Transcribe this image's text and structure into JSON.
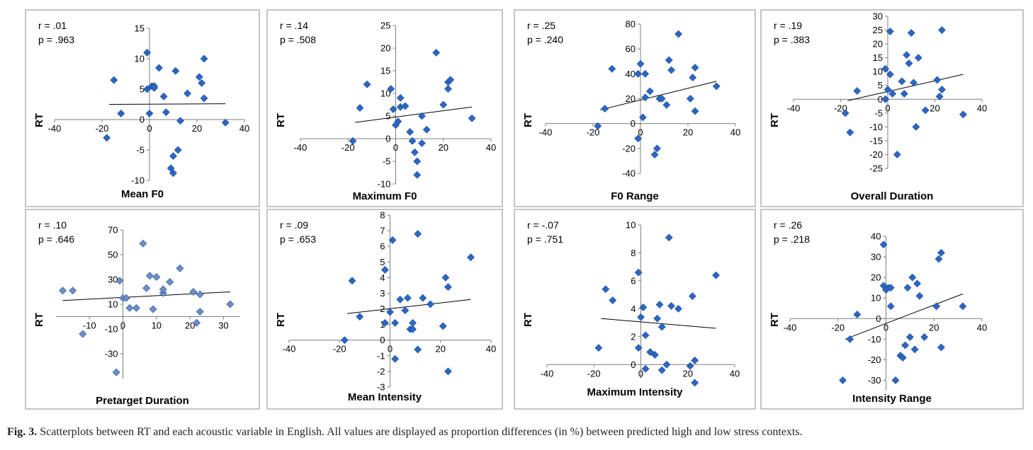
{
  "caption": {
    "label": "Fig. 3.",
    "text": "Scatterplots between RT and each acoustic variable in English. All values are displayed as proportion differences (in %) between predicted high and low stress contexts."
  },
  "chart_data": [
    {
      "type": "scatter",
      "title": "",
      "xlabel": "Mean F0",
      "ylabel": "RT",
      "r": "r = .01",
      "p": "p = .963",
      "xlim": [
        -40,
        40
      ],
      "ylim": [
        -10,
        15
      ],
      "xticks": [
        -40,
        -20,
        0,
        20,
        40
      ],
      "yticks": [
        -10,
        -5,
        0,
        5,
        10,
        15
      ],
      "marker_color": "#2b67c2",
      "points": [
        [
          -15,
          6.5
        ],
        [
          -12,
          1
        ],
        [
          -18,
          -3
        ],
        [
          -1,
          5
        ],
        [
          -1,
          11
        ],
        [
          0,
          1
        ],
        [
          1,
          5.5
        ],
        [
          2,
          5.5
        ],
        [
          2,
          5.2
        ],
        [
          4,
          8.5
        ],
        [
          6,
          3.8
        ],
        [
          7,
          1.2
        ],
        [
          9,
          -8
        ],
        [
          10,
          -8.8
        ],
        [
          10,
          -6
        ],
        [
          11,
          8
        ],
        [
          12,
          -5
        ],
        [
          13,
          -0.2
        ],
        [
          16,
          4.3
        ],
        [
          21,
          7
        ],
        [
          22,
          6
        ],
        [
          23,
          10
        ],
        [
          23,
          3.5
        ],
        [
          32,
          -0.5
        ]
      ],
      "trend": [
        [
          -17,
          2.5
        ],
        [
          32,
          2.6
        ]
      ]
    },
    {
      "type": "scatter",
      "title": "",
      "xlabel": "Maximum F0",
      "ylabel": "RT",
      "r": "r = .14",
      "p": "p = .508",
      "xlim": [
        -40,
        40
      ],
      "ylim": [
        -10,
        25
      ],
      "xticks": [
        -40,
        -20,
        0,
        20,
        40
      ],
      "yticks": [
        -10,
        -5,
        0,
        5,
        10,
        15,
        20,
        25
      ],
      "marker_color": "#2b67c2",
      "points": [
        [
          -18,
          -0.5
        ],
        [
          -15,
          6.8
        ],
        [
          -12,
          12
        ],
        [
          -2,
          11
        ],
        [
          -1,
          6.5
        ],
        [
          0,
          3
        ],
        [
          1,
          3.8
        ],
        [
          2,
          9
        ],
        [
          2,
          7
        ],
        [
          4,
          7.2
        ],
        [
          6,
          1.5
        ],
        [
          7,
          -0.5
        ],
        [
          8,
          -3
        ],
        [
          9,
          -8
        ],
        [
          9,
          -5
        ],
        [
          11,
          -1
        ],
        [
          11,
          5
        ],
        [
          13,
          2
        ],
        [
          17,
          19
        ],
        [
          20,
          7.5
        ],
        [
          22,
          12.5
        ],
        [
          22,
          11
        ],
        [
          23,
          13
        ],
        [
          32,
          4.5
        ]
      ],
      "trend": [
        [
          -17,
          3.6
        ],
        [
          32,
          7
        ]
      ]
    },
    {
      "type": "scatter",
      "title": "",
      "xlabel": "F0 Range",
      "ylabel": "RT",
      "r": "r = .25",
      "p": "p = .240",
      "xlim": [
        -40,
        40
      ],
      "ylim": [
        -40,
        80
      ],
      "xticks": [
        -40,
        -20,
        0,
        20,
        40
      ],
      "yticks": [
        -40,
        -20,
        0,
        20,
        40,
        60,
        80
      ],
      "marker_color": "#2b67c2",
      "points": [
        [
          -18,
          -2
        ],
        [
          -15,
          12
        ],
        [
          -12,
          44
        ],
        [
          -1,
          40
        ],
        [
          -1,
          -12
        ],
        [
          0,
          48
        ],
        [
          1,
          5
        ],
        [
          2,
          40
        ],
        [
          2,
          21
        ],
        [
          4,
          26
        ],
        [
          6,
          -25
        ],
        [
          7,
          -20
        ],
        [
          8,
          20
        ],
        [
          9,
          20
        ],
        [
          11,
          15
        ],
        [
          12,
          51
        ],
        [
          13,
          43
        ],
        [
          16,
          72
        ],
        [
          21,
          20
        ],
        [
          22,
          37
        ],
        [
          23,
          45
        ],
        [
          23,
          10
        ],
        [
          32,
          30
        ]
      ],
      "trend": [
        [
          -17,
          11
        ],
        [
          32,
          34
        ]
      ]
    },
    {
      "type": "scatter",
      "title": "",
      "xlabel": "Overall Duration",
      "ylabel": "RT",
      "r": "r = .19",
      "p": "p = .383",
      "xlim": [
        -40,
        40
      ],
      "ylim": [
        -25,
        30
      ],
      "xticks": [
        -40,
        -20,
        0,
        20,
        40
      ],
      "yticks": [
        -25,
        -20,
        -15,
        -10,
        -5,
        0,
        5,
        10,
        15,
        20,
        25,
        30
      ],
      "marker_color": "#2b67c2",
      "points": [
        [
          -18,
          -5
        ],
        [
          -16,
          -12
        ],
        [
          -13,
          3
        ],
        [
          -1,
          11
        ],
        [
          -1,
          0
        ],
        [
          0,
          3.5
        ],
        [
          1,
          24.5
        ],
        [
          1,
          9
        ],
        [
          2,
          2
        ],
        [
          4,
          -20
        ],
        [
          6,
          6.5
        ],
        [
          7,
          2
        ],
        [
          8,
          16
        ],
        [
          9,
          13
        ],
        [
          10,
          24
        ],
        [
          11,
          6
        ],
        [
          12,
          -10
        ],
        [
          13,
          15
        ],
        [
          16,
          -4
        ],
        [
          21,
          7
        ],
        [
          22,
          1
        ],
        [
          23,
          25
        ],
        [
          23,
          3.5
        ],
        [
          32,
          -5.5
        ]
      ],
      "trend": [
        [
          -17,
          -0.5
        ],
        [
          32,
          9
        ]
      ]
    },
    {
      "type": "scatter",
      "title": "",
      "xlabel": "Pretarget Duration",
      "ylabel": "RT",
      "r": "r = .10",
      "p": "p = .646",
      "xlim": [
        -20,
        35
      ],
      "ylim": [
        -50,
        70
      ],
      "xticks": [
        -10,
        0,
        10,
        20,
        30
      ],
      "yticks": [
        -30,
        -10,
        10,
        30,
        50,
        70
      ],
      "marker_color": "#6f8fc4",
      "points": [
        [
          -18,
          21
        ],
        [
          -15,
          21
        ],
        [
          -12,
          -14
        ],
        [
          -1,
          29
        ],
        [
          -2,
          -45
        ],
        [
          0,
          15
        ],
        [
          1,
          15
        ],
        [
          2,
          7
        ],
        [
          4,
          7
        ],
        [
          6,
          59
        ],
        [
          7,
          23
        ],
        [
          8,
          33
        ],
        [
          9,
          6
        ],
        [
          10,
          32
        ],
        [
          12,
          19
        ],
        [
          12,
          22
        ],
        [
          14,
          28
        ],
        [
          17,
          39
        ],
        [
          21,
          20
        ],
        [
          22,
          -5
        ],
        [
          23,
          18
        ],
        [
          23,
          4
        ],
        [
          32,
          10
        ]
      ],
      "trend": [
        [
          -18,
          13
        ],
        [
          32,
          20
        ]
      ]
    },
    {
      "type": "scatter",
      "title": "",
      "xlabel": "Mean Intensity",
      "ylabel": "RT",
      "r": "r = .09",
      "p": "p = .653",
      "xlim": [
        -40,
        40
      ],
      "ylim": [
        -3,
        8
      ],
      "xticks": [
        -40,
        -20,
        0,
        20,
        40
      ],
      "yticks": [
        -3,
        -2,
        -1,
        0,
        1,
        2,
        3,
        4,
        5,
        6,
        7,
        8
      ],
      "marker_color": "#2b67c2",
      "points": [
        [
          -18,
          0
        ],
        [
          -15,
          3.8
        ],
        [
          -12,
          1.5
        ],
        [
          -2,
          4.5
        ],
        [
          -2,
          1.1
        ],
        [
          0,
          1.8
        ],
        [
          1,
          6.4
        ],
        [
          2,
          -1.2
        ],
        [
          2,
          1.1
        ],
        [
          4,
          2.6
        ],
        [
          6,
          1.9
        ],
        [
          7,
          2.7
        ],
        [
          8,
          0.7
        ],
        [
          9,
          1.1
        ],
        [
          9,
          0.7
        ],
        [
          11,
          6.8
        ],
        [
          11,
          -0.6
        ],
        [
          13,
          2.7
        ],
        [
          16,
          2.3
        ],
        [
          21,
          0.9
        ],
        [
          22,
          4
        ],
        [
          23,
          3.4
        ],
        [
          23,
          -2
        ],
        [
          32,
          5.3
        ]
      ],
      "trend": [
        [
          -17,
          1.7
        ],
        [
          32,
          2.6
        ]
      ]
    },
    {
      "type": "scatter",
      "title": "",
      "xlabel": "Maximum Intensity",
      "ylabel": "RT",
      "r": "r = -.07",
      "p": "p = .751",
      "xlim": [
        -40,
        40
      ],
      "ylim": [
        -1,
        10
      ],
      "xticks": [
        -40,
        -20,
        0,
        20,
        40
      ],
      "yticks": [
        0,
        2,
        4,
        6,
        8,
        10
      ],
      "marker_color": "#2b67c2",
      "points": [
        [
          -18,
          1.2
        ],
        [
          -15,
          5.4
        ],
        [
          -12,
          4.6
        ],
        [
          -1,
          6.6
        ],
        [
          -1,
          1.2
        ],
        [
          0,
          3.4
        ],
        [
          1,
          4.1
        ],
        [
          2,
          2.1
        ],
        [
          2,
          -0.3
        ],
        [
          4,
          0.9
        ],
        [
          6,
          0.7
        ],
        [
          7,
          3.3
        ],
        [
          8,
          4.3
        ],
        [
          9,
          2.7
        ],
        [
          9,
          -0.4
        ],
        [
          11,
          0
        ],
        [
          12,
          9.1
        ],
        [
          13,
          4.2
        ],
        [
          16,
          4
        ],
        [
          21,
          -0.1
        ],
        [
          22,
          4.9
        ],
        [
          23,
          0.3
        ],
        [
          23,
          -1.3
        ],
        [
          32,
          6.4
        ]
      ],
      "trend": [
        [
          -17,
          3.3
        ],
        [
          32,
          2.6
        ]
      ]
    },
    {
      "type": "scatter",
      "title": "",
      "xlabel": "Intensity Range",
      "ylabel": "RT",
      "r": "r = .26",
      "p": "p = .218",
      "xlim": [
        -40,
        40
      ],
      "ylim": [
        -35,
        40
      ],
      "xticks": [
        -40,
        -20,
        0,
        20,
        40
      ],
      "yticks": [
        -30,
        -20,
        -10,
        0,
        10,
        20,
        30,
        40
      ],
      "marker_color": "#2b67c2",
      "points": [
        [
          -18,
          -30
        ],
        [
          -15,
          -10
        ],
        [
          -12,
          2
        ],
        [
          -1,
          36
        ],
        [
          -1,
          16
        ],
        [
          0,
          14
        ],
        [
          1,
          15
        ],
        [
          2,
          15
        ],
        [
          2,
          6
        ],
        [
          4,
          -30
        ],
        [
          6,
          -18
        ],
        [
          7,
          -19
        ],
        [
          8,
          -13
        ],
        [
          9,
          15
        ],
        [
          10,
          -9
        ],
        [
          11,
          20
        ],
        [
          12,
          -15
        ],
        [
          13,
          17
        ],
        [
          14,
          11
        ],
        [
          16,
          -9
        ],
        [
          21,
          6
        ],
        [
          22,
          29
        ],
        [
          23,
          32
        ],
        [
          23,
          -14
        ],
        [
          32,
          6
        ]
      ],
      "trend": [
        [
          -17,
          -10
        ],
        [
          32,
          12
        ]
      ]
    }
  ]
}
